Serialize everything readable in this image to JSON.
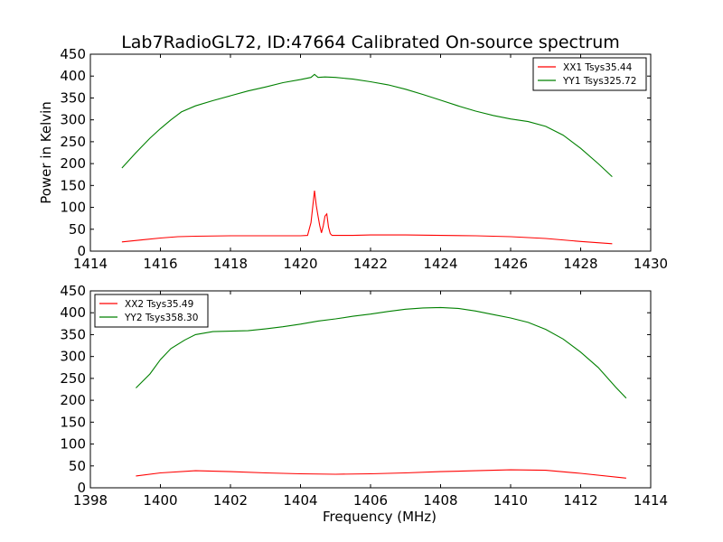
{
  "figure_title": "Lab7RadioGL72, ID:47664 Calibrated On-source spectrum",
  "chart_data": [
    {
      "type": "line",
      "title": "Lab7RadioGL72, ID:47664 Calibrated On-source spectrum",
      "xlabel": "",
      "ylabel": "Power in Kelvin",
      "xlim": [
        1414,
        1430
      ],
      "ylim": [
        0,
        450
      ],
      "xticks": [
        "1414",
        "1416",
        "1418",
        "1420",
        "1422",
        "1424",
        "1426",
        "1428",
        "1430"
      ],
      "yticks": [
        "0",
        "50",
        "100",
        "150",
        "200",
        "250",
        "300",
        "350",
        "400",
        "450"
      ],
      "grid": false,
      "legend_position": "top-right",
      "series": [
        {
          "name": "XX1 Tsys35.44",
          "color": "#ff0000",
          "x": [
            1414.9,
            1415.5,
            1416.0,
            1416.5,
            1417.0,
            1418.0,
            1419.0,
            1420.0,
            1420.2,
            1420.3,
            1420.4,
            1420.45,
            1420.5,
            1420.55,
            1420.6,
            1420.65,
            1420.7,
            1420.75,
            1420.8,
            1420.85,
            1420.9,
            1421.0,
            1421.5,
            1422.0,
            1423.0,
            1424.0,
            1425.0,
            1426.0,
            1427.0,
            1428.0,
            1428.9
          ],
          "values": [
            21,
            26,
            30,
            33,
            34,
            35,
            35,
            35,
            36,
            65,
            138,
            105,
            80,
            58,
            42,
            58,
            80,
            85,
            55,
            40,
            36,
            36,
            36,
            37,
            37,
            36,
            35,
            33,
            29,
            22,
            17
          ]
        },
        {
          "name": "YY1 Tsys325.72",
          "color": "#008000",
          "x": [
            1414.9,
            1415.3,
            1415.7,
            1416.0,
            1416.3,
            1416.6,
            1417.0,
            1417.5,
            1418.0,
            1418.5,
            1419.0,
            1419.5,
            1420.0,
            1420.3,
            1420.4,
            1420.5,
            1420.7,
            1421.0,
            1421.5,
            1422.0,
            1422.5,
            1423.0,
            1423.5,
            1424.0,
            1424.5,
            1425.0,
            1425.5,
            1426.0,
            1426.5,
            1427.0,
            1427.5,
            1428.0,
            1428.5,
            1428.9
          ],
          "values": [
            190,
            225,
            258,
            280,
            300,
            318,
            332,
            344,
            355,
            366,
            375,
            385,
            392,
            397,
            404,
            397,
            398,
            397,
            393,
            387,
            380,
            370,
            358,
            345,
            332,
            320,
            310,
            302,
            296,
            285,
            265,
            235,
            200,
            170
          ]
        }
      ]
    },
    {
      "type": "line",
      "title": "",
      "xlabel": "Frequency (MHz)",
      "ylabel": "",
      "xlim": [
        1398,
        1414
      ],
      "ylim": [
        0,
        450
      ],
      "xticks": [
        "1398",
        "1400",
        "1402",
        "1404",
        "1406",
        "1408",
        "1410",
        "1412",
        "1414"
      ],
      "yticks": [
        "0",
        "50",
        "100",
        "150",
        "200",
        "250",
        "300",
        "350",
        "400",
        "450"
      ],
      "grid": false,
      "legend_position": "top-left",
      "series": [
        {
          "name": "XX2 Tsys35.49",
          "color": "#ff0000",
          "x": [
            1399.3,
            1400.0,
            1401.0,
            1402.0,
            1403.0,
            1404.0,
            1405.0,
            1406.0,
            1407.0,
            1408.0,
            1409.0,
            1410.0,
            1411.0,
            1412.0,
            1413.3
          ],
          "values": [
            27,
            34,
            39,
            37,
            34,
            32,
            31,
            32,
            34,
            37,
            39,
            41,
            40,
            33,
            22
          ]
        },
        {
          "name": "YY2 Tsys358.30",
          "color": "#008000",
          "x": [
            1399.3,
            1399.7,
            1400.0,
            1400.3,
            1400.7,
            1401.0,
            1401.5,
            1402.0,
            1402.5,
            1403.0,
            1403.5,
            1404.0,
            1404.5,
            1405.0,
            1405.5,
            1406.0,
            1406.5,
            1407.0,
            1407.5,
            1408.0,
            1408.5,
            1409.0,
            1409.5,
            1410.0,
            1410.5,
            1411.0,
            1411.5,
            1412.0,
            1412.5,
            1413.0,
            1413.3
          ],
          "values": [
            228,
            260,
            293,
            318,
            338,
            350,
            357,
            358,
            359,
            363,
            368,
            374,
            381,
            386,
            392,
            397,
            403,
            408,
            411,
            412,
            410,
            404,
            396,
            388,
            378,
            362,
            340,
            310,
            275,
            230,
            205
          ]
        }
      ]
    }
  ]
}
